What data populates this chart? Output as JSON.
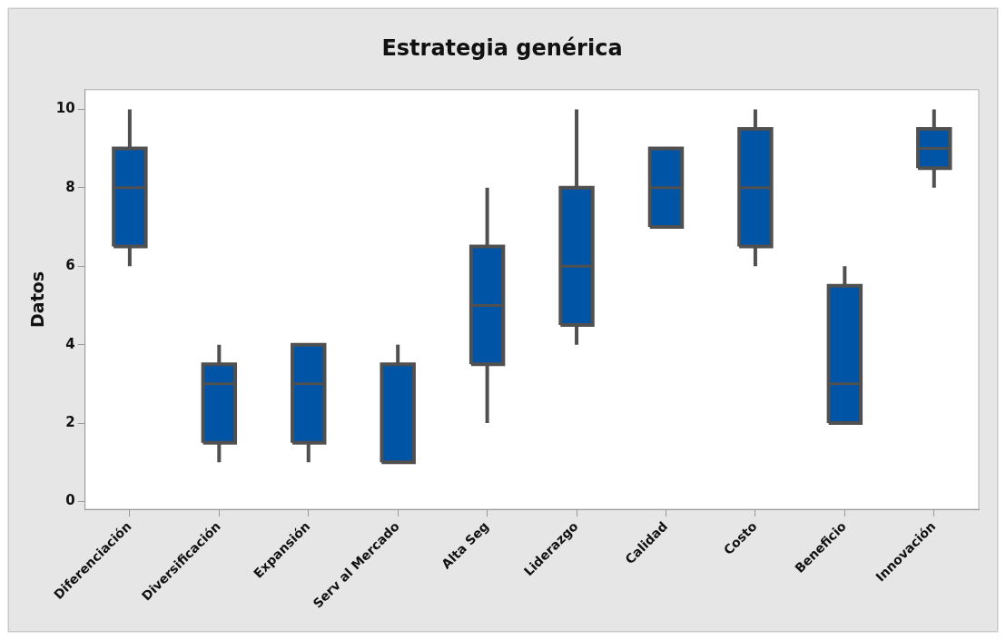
{
  "chart_data": {
    "type": "box",
    "title": "Estrategia genérica",
    "ylabel": "Datos",
    "categories": [
      "Diferenciación",
      "Diversificación",
      "Expansión",
      "Serv al Mercado",
      "Alta Seg",
      "Liderazgo",
      "Calidad",
      "Costo",
      "Beneficio",
      "Innovación"
    ],
    "series": [
      {
        "color": "#0054a6",
        "boxes": [
          {
            "low": 6,
            "q1": 6.5,
            "median": 8,
            "q3": 9,
            "high": 10
          },
          {
            "low": 1,
            "q1": 1.5,
            "median": 3,
            "q3": 3.5,
            "high": 4
          },
          {
            "low": 1,
            "q1": 1.5,
            "median": 3,
            "q3": 4,
            "high": 4
          },
          {
            "low": 1,
            "q1": 1,
            "median": 1,
            "q3": 3.5,
            "high": 4
          },
          {
            "low": 2,
            "q1": 3.5,
            "median": 5,
            "q3": 6.5,
            "high": 8
          },
          {
            "low": 4,
            "q1": 4.5,
            "median": 6,
            "q3": 8,
            "high": 10
          },
          {
            "low": 7,
            "q1": 7,
            "median": 8,
            "q3": 9,
            "high": 9
          },
          {
            "low": 6,
            "q1": 6.5,
            "median": 8,
            "q3": 9.5,
            "high": 10
          },
          {
            "low": 2,
            "q1": 2,
            "median": 3,
            "q3": 5.5,
            "high": 6
          },
          {
            "low": 8,
            "q1": 8.5,
            "median": 9,
            "q3": 9.5,
            "high": 10
          }
        ]
      }
    ],
    "ylim": [
      -0.2,
      10.5
    ],
    "yticks": [
      0,
      2,
      4,
      6,
      8,
      10
    ],
    "grid": false
  }
}
